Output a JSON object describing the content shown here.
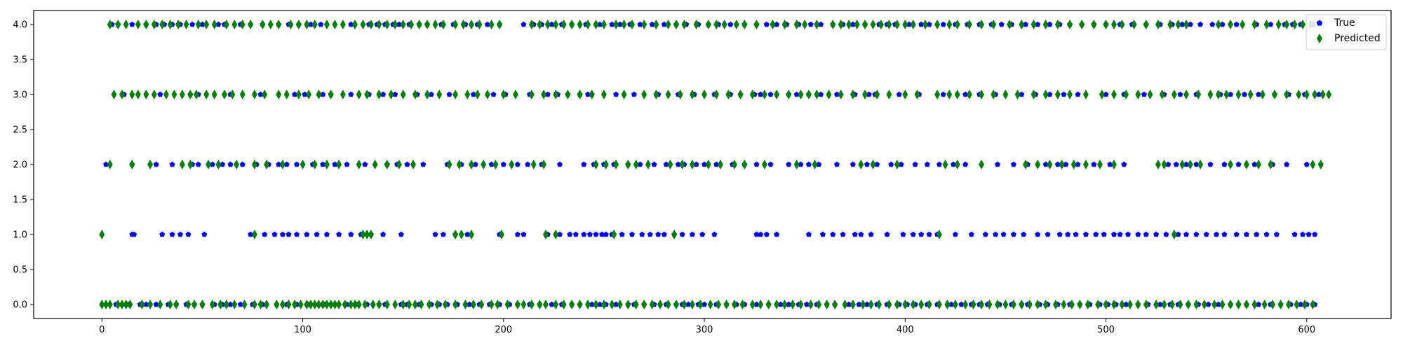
{
  "chart_data": {
    "type": "scatter",
    "title": "",
    "xlabel": "",
    "ylabel": "",
    "xlim": [
      -34,
      642
    ],
    "ylim": [
      -0.2,
      4.2
    ],
    "x_ticks": [
      0,
      100,
      200,
      300,
      400,
      500,
      600
    ],
    "y_ticks": [
      0.0,
      0.5,
      1.0,
      1.5,
      2.0,
      2.5,
      3.0,
      3.5,
      4.0
    ],
    "x_tick_labels": [
      "0",
      "100",
      "200",
      "300",
      "400",
      "500",
      "600"
    ],
    "y_tick_labels": [
      "0.0",
      "0.5",
      "1.0",
      "1.5",
      "2.0",
      "2.5",
      "3.0",
      "3.5",
      "4.0"
    ],
    "grid": false,
    "legend_position": "top-right",
    "series": [
      {
        "name": "True",
        "marker": "pentagon",
        "color": "#0000ff",
        "points": {
          "0": [
            7,
            10,
            13,
            19,
            22,
            27,
            33,
            37,
            42,
            46,
            50,
            56,
            60,
            64,
            69,
            75,
            80,
            87,
            92,
            97,
            103,
            108,
            111,
            116,
            122,
            127,
            132,
            138,
            141,
            149,
            152,
            158,
            164,
            168,
            172,
            177,
            183,
            188,
            193,
            198,
            203,
            207,
            213,
            218,
            224,
            229,
            234,
            238,
            244,
            248,
            251,
            256,
            262,
            265,
            270,
            275,
            281,
            286,
            289,
            292,
            297,
            300,
            306,
            311,
            316,
            320,
            326,
            332,
            338,
            342,
            347,
            351,
            356,
            361,
            365,
            372,
            377,
            381,
            386,
            391,
            397,
            401,
            405,
            411,
            416,
            423,
            428,
            433,
            437,
            441,
            447,
            453,
            458,
            461,
            467,
            471,
            476,
            482,
            487,
            492,
            497,
            501,
            505,
            510,
            516,
            521,
            527,
            532,
            536,
            541,
            546,
            551,
            556,
            562,
            566,
            570,
            576,
            582,
            587,
            592,
            597,
            600,
            604
          ],
          "1": [
            15,
            16,
            30,
            35,
            39,
            43,
            51,
            74,
            81,
            86,
            90,
            93,
            97,
            102,
            107,
            112,
            118,
            124,
            129,
            134,
            140,
            149,
            166,
            170,
            176,
            182,
            198,
            207,
            210,
            222,
            228,
            233,
            236,
            240,
            243,
            246,
            249,
            251,
            254,
            259,
            264,
            269,
            273,
            277,
            280,
            285,
            289,
            294,
            299,
            305,
            326,
            328,
            331,
            336,
            352,
            359,
            364,
            369,
            375,
            378,
            383,
            391,
            399,
            404,
            408,
            412,
            416,
            425,
            433,
            440,
            445,
            449,
            454,
            459,
            466,
            471,
            477,
            481,
            485,
            490,
            495,
            499,
            504,
            507,
            511,
            516,
            520,
            525,
            530,
            536,
            540,
            545,
            550,
            555,
            559,
            565,
            570,
            575,
            580,
            585,
            594,
            598,
            601,
            604
          ],
          "2": [
            2,
            15,
            27,
            35,
            45,
            48,
            55,
            60,
            64,
            70,
            77,
            83,
            88,
            92,
            97,
            105,
            110,
            116,
            122,
            131,
            142,
            147,
            152,
            160,
            172,
            179,
            186,
            194,
            200,
            207,
            212,
            219,
            228,
            240,
            245,
            250,
            255,
            262,
            268,
            275,
            281,
            287,
            290,
            296,
            300,
            306,
            314,
            320,
            326,
            333,
            342,
            348,
            352,
            357,
            366,
            374,
            381,
            386,
            393,
            398,
            405,
            411,
            417,
            424,
            430,
            446,
            454,
            461,
            470,
            476,
            480,
            486,
            494,
            502,
            509,
            531,
            535,
            540,
            545,
            552,
            559,
            566,
            574,
            583,
            590,
            600,
            607
          ],
          "3": [
            11,
            29,
            44,
            48,
            64,
            79,
            96,
            101,
            110,
            114,
            124,
            133,
            140,
            146,
            157,
            164,
            173,
            185,
            195,
            201,
            213,
            222,
            227,
            232,
            238,
            242,
            244,
            256,
            265,
            277,
            287,
            295,
            305,
            313,
            318,
            325,
            328,
            333,
            342,
            346,
            352,
            358,
            366,
            375,
            382,
            385,
            397,
            407,
            419,
            430,
            437,
            445,
            458,
            465,
            472,
            479,
            486,
            500,
            509,
            519,
            529,
            537,
            545,
            557,
            562,
            569,
            576,
            584,
            591,
            599,
            606
          ],
          "4": [
            5,
            8,
            15,
            22,
            27,
            31,
            35,
            39,
            45,
            50,
            58,
            61,
            69,
            74,
            80,
            88,
            93,
            98,
            104,
            109,
            124,
            133,
            137,
            141,
            145,
            148,
            153,
            158,
            162,
            169,
            175,
            181,
            187,
            192,
            198,
            210,
            215,
            219,
            224,
            229,
            234,
            241,
            248,
            254,
            258,
            263,
            268,
            274,
            280,
            286,
            291,
            297,
            302,
            307,
            313,
            320,
            326,
            331,
            336,
            341,
            347,
            353,
            358,
            364,
            369,
            374,
            380,
            387,
            391,
            395,
            402,
            408,
            412,
            419,
            425,
            431,
            437,
            443,
            448,
            453,
            460,
            466,
            472,
            477,
            482,
            488,
            494,
            500,
            507,
            513,
            520,
            527,
            533,
            538,
            542,
            547,
            553,
            558,
            565,
            575,
            582,
            589,
            593,
            597,
            603
          ]
        }
      },
      {
        "name": "Predicted",
        "marker": "thin_diamond",
        "color": "#008000",
        "points": {
          "0": [
            0,
            2,
            4,
            8,
            10,
            12,
            14,
            20,
            24,
            29,
            34,
            37,
            43,
            46,
            50,
            55,
            59,
            62,
            66,
            71,
            76,
            79,
            82,
            87,
            90,
            93,
            96,
            99,
            102,
            104,
            106,
            108,
            110,
            112,
            114,
            116,
            118,
            121,
            124,
            126,
            128,
            131,
            135,
            138,
            142,
            146,
            150,
            153,
            156,
            159,
            163,
            167,
            171,
            176,
            181,
            185,
            189,
            194,
            197,
            202,
            207,
            210,
            214,
            218,
            221,
            226,
            230,
            234,
            238,
            242,
            246,
            250,
            254,
            258,
            262,
            266,
            270,
            274,
            278,
            282,
            286,
            290,
            294,
            298,
            303,
            307,
            311,
            315,
            319,
            324,
            328,
            332,
            336,
            340,
            344,
            348,
            353,
            357,
            361,
            365,
            370,
            374,
            379,
            383,
            387,
            392,
            396,
            400,
            404,
            408,
            412,
            417,
            421,
            425,
            430,
            434,
            438,
            442,
            446,
            450,
            454,
            458,
            462,
            466,
            470,
            475,
            479,
            483,
            487,
            491,
            496,
            500,
            504,
            508,
            512,
            516,
            520,
            525,
            529,
            533,
            537,
            541,
            545,
            549,
            554,
            558,
            562,
            566,
            570,
            574,
            579,
            583,
            587,
            591,
            595,
            599,
            603
          ],
          "1": [
            0,
            76,
            130,
            132,
            134,
            176,
            179,
            184,
            199,
            221,
            226,
            255,
            285,
            417,
            534
          ],
          "2": [
            4,
            15,
            24,
            40,
            44,
            53,
            58,
            67,
            76,
            82,
            90,
            100,
            106,
            112,
            118,
            128,
            136,
            142,
            148,
            155,
            173,
            178,
            184,
            190,
            196,
            204,
            215,
            220,
            246,
            251,
            256,
            262,
            266,
            272,
            283,
            289,
            294,
            302,
            308,
            315,
            320,
            330,
            346,
            355,
            378,
            384,
            396,
            420,
            426,
            438,
            460,
            466,
            472,
            478,
            484,
            490,
            497,
            504,
            526,
            529,
            538,
            542,
            547,
            562,
            570,
            576,
            582,
            603,
            607
          ],
          "3": [
            6,
            10,
            15,
            18,
            22,
            26,
            32,
            36,
            40,
            44,
            47,
            52,
            56,
            61,
            65,
            70,
            76,
            81,
            88,
            92,
            98,
            103,
            108,
            114,
            120,
            128,
            132,
            138,
            144,
            150,
            156,
            162,
            168,
            176,
            182,
            187,
            192,
            200,
            206,
            214,
            220,
            226,
            232,
            238,
            244,
            250,
            260,
            270,
            276,
            282,
            288,
            294,
            300,
            306,
            312,
            318,
            324,
            330,
            336,
            342,
            348,
            352,
            356,
            362,
            368,
            374,
            380,
            386,
            392,
            400,
            406,
            416,
            422,
            426,
            432,
            438,
            444,
            450,
            456,
            464,
            470,
            476,
            482,
            490,
            498,
            504,
            510,
            516,
            522,
            528,
            534,
            540,
            546,
            552,
            556,
            560,
            566,
            572,
            578,
            584,
            590,
            596,
            600,
            604,
            608,
            611
          ],
          "4": [
            4,
            8,
            12,
            18,
            22,
            26,
            30,
            34,
            38,
            42,
            48,
            52,
            56,
            62,
            66,
            70,
            74,
            80,
            84,
            88,
            94,
            98,
            102,
            106,
            112,
            116,
            120,
            126,
            130,
            134,
            138,
            142,
            146,
            150,
            154,
            158,
            162,
            166,
            170,
            176,
            180,
            184,
            188,
            194,
            198,
            214,
            218,
            222,
            226,
            230,
            234,
            238,
            242,
            246,
            250,
            256,
            260,
            264,
            270,
            276,
            282,
            286,
            290,
            296,
            302,
            306,
            310,
            316,
            320,
            326,
            334,
            340,
            346,
            350,
            356,
            364,
            368,
            372,
            376,
            380,
            384,
            388,
            392,
            396,
            400,
            404,
            410,
            416,
            422,
            426,
            432,
            438,
            444,
            452,
            458,
            464,
            470,
            476,
            482,
            488,
            494,
            500,
            504,
            508,
            514,
            520,
            526,
            532,
            536,
            540,
            556,
            562,
            568,
            574,
            580,
            586,
            590,
            594,
            598,
            602
          ]
        }
      }
    ]
  }
}
